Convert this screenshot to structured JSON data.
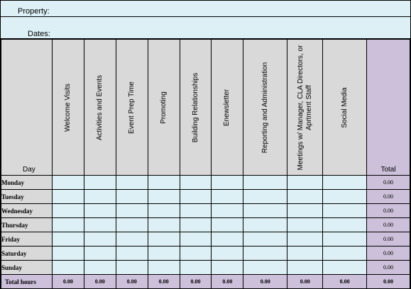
{
  "header": {
    "property_label": "Property:",
    "dates_label": "Dates:"
  },
  "table": {
    "day_label": "Day",
    "total_label": "Total",
    "columns": [
      "Welcome Visits",
      "Activities and Events",
      "Event Prep Time",
      "Promoting",
      "Building Relationships",
      "Enewsletter",
      "Reporting and Administration",
      "Meetings w/ Manager, CLA Directors, or",
      "Aprtment Staff",
      "Social Media"
    ],
    "rows": [
      {
        "day": "Monday",
        "total": "0.00"
      },
      {
        "day": "Tuesday",
        "total": "0.00"
      },
      {
        "day": "Wednesday",
        "total": "0.00"
      },
      {
        "day": "Thursday",
        "total": "0.00"
      },
      {
        "day": "Friday",
        "total": "0.00"
      },
      {
        "day": "Saturday",
        "total": "0.00"
      },
      {
        "day": "Sunday",
        "total": "0.00"
      }
    ],
    "total_hours_label": "Total hours",
    "column_totals": [
      "0.00",
      "0.00",
      "0.00",
      "0.00",
      "0.00",
      "0.00",
      "0.00",
      "0.00",
      "0.00",
      "0.00"
    ]
  }
}
